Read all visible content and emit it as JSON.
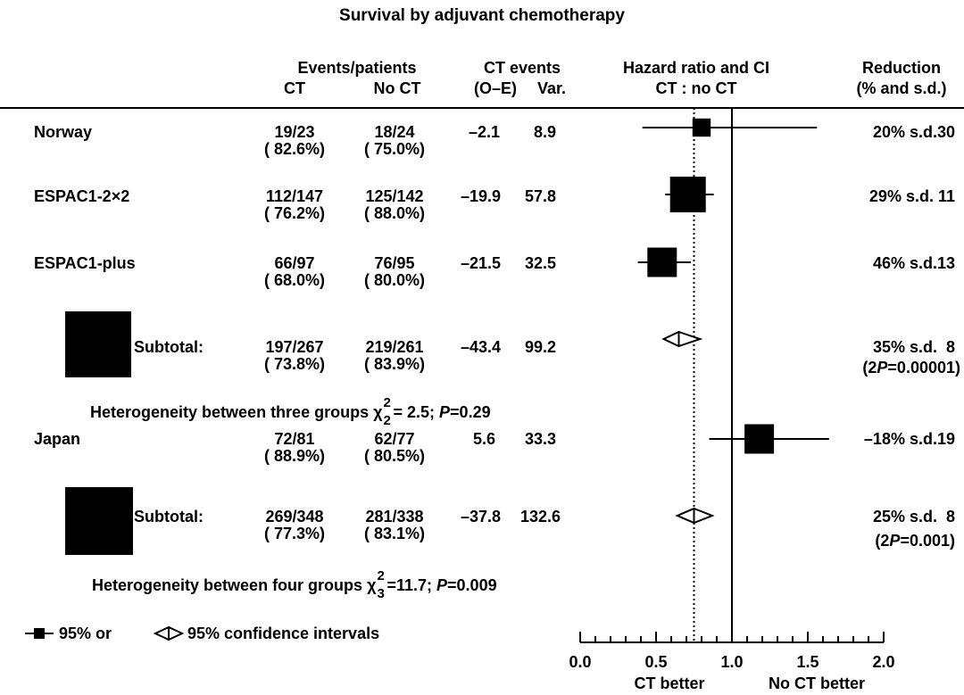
{
  "title": "Survival by adjuvant chemotherapy",
  "headers": {
    "events_patients": "Events/patients",
    "ct": "CT",
    "no_ct": "No CT",
    "ct_events": "CT events",
    "oe": "(O–E)",
    "var": "Var.",
    "hr_title": "Hazard ratio and CI",
    "hr_sub": "CT : no CT",
    "reduction": "Reduction",
    "reduction_sub": "(% and s.d.)"
  },
  "rows": [
    {
      "label": "Norway",
      "ct": "19/23",
      "ct_pct": "( 82.6%)",
      "noct": "18/24",
      "noct_pct": "( 75.0%)",
      "oe": "–2.1",
      "var": "8.9",
      "reduction": "20% s.d.30",
      "p": ""
    },
    {
      "label": "ESPAC1-2×2",
      "ct": "112/147",
      "ct_pct": "( 76.2%)",
      "noct": "125/142",
      "noct_pct": "( 88.0%)",
      "oe": "–19.9",
      "var": "57.8",
      "reduction": "29% s.d. 11",
      "p": ""
    },
    {
      "label": "ESPAC1-plus",
      "ct": "66/97",
      "ct_pct": "( 68.0%)",
      "noct": "76/95",
      "noct_pct": "( 80.0%)",
      "oe": "–21.5",
      "var": "32.5",
      "reduction": "46% s.d.13",
      "p": ""
    },
    {
      "label": "Subtotal:",
      "ct": "197/267",
      "ct_pct": "( 73.8%)",
      "noct": "219/261",
      "noct_pct": "( 83.9%)",
      "oe": "–43.4",
      "var": "99.2",
      "reduction": "35% s.d.  8",
      "p": "(2P=0.00001)"
    },
    {
      "label": "Japan",
      "ct": "72/81",
      "ct_pct": "( 88.9%)",
      "noct": "62/77",
      "noct_pct": "( 80.5%)",
      "oe": "5.6",
      "var": "33.3",
      "reduction": "–18% s.d.19",
      "p": ""
    },
    {
      "label": "Subtotal:",
      "ct": "269/348",
      "ct_pct": "( 77.3%)",
      "noct": "281/338",
      "noct_pct": "( 83.1%)",
      "oe": "–37.8",
      "var": "132.6",
      "reduction": "25% s.d.  8",
      "p": "(2P=0.001)"
    }
  ],
  "heterogeneity": [
    {
      "text": "Heterogeneity between three groups",
      "chi": "χ",
      "sup": "2",
      "sub": "2",
      "stat": "= 2.5;",
      "p_label": "P",
      "p_value": "=0.29"
    },
    {
      "text": "Heterogeneity between four groups",
      "chi": "χ",
      "sup": "2",
      "sub": "3",
      "stat": "=11.7;",
      "p_label": "P",
      "p_value": "=0.009"
    }
  ],
  "legend": {
    "square": "95% or",
    "diamond": "95% confidence intervals"
  },
  "axis_labels": {
    "left": "CT better",
    "right": "No CT better"
  },
  "chart_data": {
    "type": "forest",
    "title": "Survival by adjuvant chemotherapy",
    "xlim": [
      0.0,
      2.0
    ],
    "ticks": [
      "0.0",
      "0.5",
      "1.0",
      "1.5",
      "2.0"
    ],
    "reference_line": 1.0,
    "pooled_line": 0.75,
    "studies": [
      {
        "label": "Norway",
        "hr": 0.8,
        "lo": 0.41,
        "hi": 1.56,
        "marker": "square",
        "size": 0.3
      },
      {
        "label": "ESPAC1-2×2",
        "hr": 0.71,
        "lo": 0.56,
        "hi": 0.88,
        "marker": "square",
        "size": 1.0
      },
      {
        "label": "ESPAC1-plus",
        "hr": 0.54,
        "lo": 0.38,
        "hi": 0.73,
        "marker": "square",
        "size": 0.75
      },
      {
        "label": "Subtotal:",
        "hr": 0.65,
        "lo": 0.55,
        "hi": 0.79,
        "marker": "diamond",
        "size": 1.3
      },
      {
        "label": "Japan",
        "hr": 1.18,
        "lo": 0.85,
        "hi": 1.64,
        "marker": "square",
        "size": 0.75
      },
      {
        "label": "Subtotal:",
        "hr": 0.75,
        "lo": 0.64,
        "hi": 0.87,
        "marker": "diamond",
        "size": 1.4
      }
    ]
  }
}
